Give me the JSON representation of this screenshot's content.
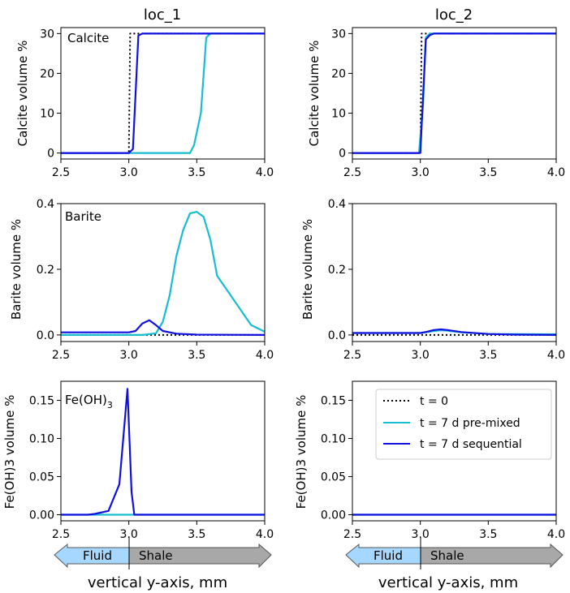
{
  "colors": {
    "t0": "#000000",
    "premixed": "#17BECF",
    "sequential": "#1010E0",
    "fluid_arrow": "#A6D8FF",
    "shale_arrow": "#A8A8A8"
  },
  "column_titles": [
    "loc_1",
    "loc_2"
  ],
  "row_ylabels": [
    "Calcite volume %",
    "Barite volume %",
    "Fe(OH)3 volume %"
  ],
  "panel_labels": [
    "Calcite",
    "Barite",
    "Fe(OH)"
  ],
  "panel_label_sub": "3",
  "xlabel": "vertical y-axis, mm",
  "arrow_labels": {
    "fluid": "Fluid",
    "shale": "Shale"
  },
  "legend": {
    "entries": [
      {
        "label": "t = 0",
        "series": "t0"
      },
      {
        "label": "t = 7 d pre-mixed",
        "series": "premixed"
      },
      {
        "label": "t = 7 d sequential",
        "series": "sequential"
      }
    ],
    "location": "top-right of bottom-right panel"
  },
  "chart_data": [
    {
      "type": "line",
      "id": "calcite_loc1",
      "title": "loc_1",
      "annotation": "Calcite",
      "xlabel": "",
      "ylabel": "Calcite volume %",
      "xlim": [
        2.5,
        4.0
      ],
      "ylim": [
        -1.5,
        31.5
      ],
      "xticks": [
        2.5,
        3.0,
        3.5,
        4.0
      ],
      "xtick_labels": [
        "2.5",
        "3.0",
        "3.5",
        "4.0"
      ],
      "yticks": [
        0,
        10,
        20,
        30
      ],
      "ytick_labels": [
        "0",
        "10",
        "20",
        "30"
      ],
      "series": [
        {
          "name": "t = 0",
          "style": "dotted",
          "x": [
            2.5,
            3.0,
            3.01,
            4.0
          ],
          "y": [
            0,
            0,
            30,
            30
          ]
        },
        {
          "name": "t = 7 d pre-mixed",
          "x": [
            2.5,
            3.45,
            3.48,
            3.53,
            3.57,
            3.6,
            4.0
          ],
          "y": [
            0,
            0,
            2,
            10,
            29,
            30,
            30
          ]
        },
        {
          "name": "t = 7 d sequential",
          "x": [
            2.5,
            3.0,
            3.03,
            3.05,
            3.07,
            3.1,
            4.0
          ],
          "y": [
            0,
            0,
            1,
            15,
            29.5,
            30,
            30
          ]
        }
      ]
    },
    {
      "type": "line",
      "id": "calcite_loc2",
      "title": "loc_2",
      "xlabel": "",
      "ylabel": "Calcite volume %",
      "xlim": [
        2.5,
        4.0
      ],
      "ylim": [
        -1.5,
        31.5
      ],
      "xticks": [
        2.5,
        3.0,
        3.5,
        4.0
      ],
      "xtick_labels": [
        "2.5",
        "3.0",
        "3.5",
        "4.0"
      ],
      "yticks": [
        0,
        10,
        20,
        30
      ],
      "ytick_labels": [
        "0",
        "10",
        "20",
        "30"
      ],
      "series": [
        {
          "name": "t = 0",
          "style": "dotted",
          "x": [
            2.5,
            3.0,
            3.01,
            4.0
          ],
          "y": [
            0,
            0,
            30,
            30
          ]
        },
        {
          "name": "t = 7 d pre-mixed",
          "x": [
            2.5,
            2.99,
            3.02,
            3.04,
            3.07,
            4.0
          ],
          "y": [
            0,
            0,
            12,
            29,
            30,
            30
          ]
        },
        {
          "name": "t = 7 d sequential",
          "x": [
            2.5,
            3.0,
            3.02,
            3.04,
            3.07,
            3.1,
            4.0
          ],
          "y": [
            0,
            0,
            14,
            28.5,
            29.6,
            30,
            30
          ]
        }
      ]
    },
    {
      "type": "line",
      "id": "barite_loc1",
      "annotation": "Barite",
      "xlabel": "",
      "ylabel": "Barite volume %",
      "xlim": [
        2.5,
        4.0
      ],
      "ylim": [
        -0.02,
        0.4
      ],
      "xticks": [
        2.5,
        3.0,
        3.5,
        4.0
      ],
      "xtick_labels": [
        "2.5",
        "3.0",
        "3.5",
        "4.0"
      ],
      "yticks": [
        0.0,
        0.2,
        0.4
      ],
      "ytick_labels": [
        "0.0",
        "0.2",
        "0.4"
      ],
      "series": [
        {
          "name": "t = 0",
          "style": "dotted",
          "x": [
            2.5,
            4.0
          ],
          "y": [
            0,
            0
          ]
        },
        {
          "name": "t = 7 d pre-mixed",
          "x": [
            2.5,
            3.1,
            3.2,
            3.25,
            3.3,
            3.35,
            3.4,
            3.45,
            3.5,
            3.55,
            3.6,
            3.65,
            3.75,
            3.9,
            4.0
          ],
          "y": [
            0,
            0,
            0.005,
            0.04,
            0.12,
            0.24,
            0.32,
            0.37,
            0.375,
            0.36,
            0.29,
            0.18,
            0.12,
            0.03,
            0.01
          ]
        },
        {
          "name": "t = 7 d sequential",
          "x": [
            2.5,
            3.0,
            3.05,
            3.1,
            3.15,
            3.2,
            3.25,
            3.35,
            3.5,
            4.0
          ],
          "y": [
            0.008,
            0.008,
            0.012,
            0.035,
            0.045,
            0.03,
            0.012,
            0.004,
            0.001,
            0.0
          ]
        }
      ]
    },
    {
      "type": "line",
      "id": "barite_loc2",
      "xlabel": "",
      "ylabel": "Barite volume %",
      "xlim": [
        2.5,
        4.0
      ],
      "ylim": [
        -0.02,
        0.4
      ],
      "xticks": [
        2.5,
        3.0,
        3.5,
        4.0
      ],
      "xtick_labels": [
        "2.5",
        "3.0",
        "3.5",
        "4.0"
      ],
      "yticks": [
        0.0,
        0.2,
        0.4
      ],
      "ytick_labels": [
        "0.0",
        "0.2",
        "0.4"
      ],
      "series": [
        {
          "name": "t = 0",
          "style": "dotted",
          "x": [
            2.5,
            4.0
          ],
          "y": [
            0,
            0
          ]
        },
        {
          "name": "t = 7 d pre-mixed",
          "x": [
            2.5,
            3.0,
            3.1,
            3.15,
            3.2,
            3.3,
            3.5,
            4.0
          ],
          "y": [
            0.006,
            0.006,
            0.012,
            0.014,
            0.013,
            0.008,
            0.003,
            0.002
          ]
        },
        {
          "name": "t = 7 d sequential",
          "x": [
            2.5,
            3.0,
            3.05,
            3.1,
            3.15,
            3.2,
            3.3,
            3.5,
            3.7,
            4.0
          ],
          "y": [
            0.006,
            0.006,
            0.01,
            0.015,
            0.017,
            0.015,
            0.009,
            0.003,
            0.001,
            0.0
          ]
        }
      ]
    },
    {
      "type": "line",
      "id": "feoh3_loc1",
      "annotation": "Fe(OH)3",
      "xlabel": "",
      "ylabel": "Fe(OH)3 volume %",
      "xlim": [
        2.5,
        4.0
      ],
      "ylim": [
        -0.008,
        0.175
      ],
      "xticks": [
        2.5,
        3.0,
        3.5,
        4.0
      ],
      "xtick_labels": [
        "2.5",
        "3.0",
        "3.5",
        "4.0"
      ],
      "yticks": [
        0.0,
        0.05,
        0.1,
        0.15
      ],
      "ytick_labels": [
        "0.00",
        "0.05",
        "0.10",
        "0.15"
      ],
      "series": [
        {
          "name": "t = 0",
          "style": "dotted",
          "x": [
            2.5,
            4.0
          ],
          "y": [
            0,
            0
          ]
        },
        {
          "name": "t = 7 d pre-mixed",
          "x": [
            2.5,
            4.0
          ],
          "y": [
            0,
            0
          ]
        },
        {
          "name": "t = 7 d sequential",
          "x": [
            2.5,
            2.7,
            2.75,
            2.85,
            2.93,
            2.99,
            3.02,
            3.04,
            4.0
          ],
          "y": [
            0.0,
            0.0,
            0.001,
            0.005,
            0.04,
            0.165,
            0.03,
            0.0,
            0.0
          ]
        }
      ]
    },
    {
      "type": "line",
      "id": "feoh3_loc2",
      "xlabel": "",
      "ylabel": "Fe(OH)3 volume %",
      "xlim": [
        2.5,
        4.0
      ],
      "ylim": [
        -0.008,
        0.175
      ],
      "xticks": [
        2.5,
        3.0,
        3.5,
        4.0
      ],
      "xtick_labels": [
        "2.5",
        "3.0",
        "3.5",
        "4.0"
      ],
      "yticks": [
        0.0,
        0.05,
        0.1,
        0.15
      ],
      "ytick_labels": [
        "0.00",
        "0.05",
        "0.10",
        "0.15"
      ],
      "series": [
        {
          "name": "t = 0",
          "style": "dotted",
          "x": [
            2.5,
            4.0
          ],
          "y": [
            0,
            0
          ]
        },
        {
          "name": "t = 7 d pre-mixed",
          "x": [
            2.5,
            4.0
          ],
          "y": [
            0,
            0
          ]
        },
        {
          "name": "t = 7 d sequential",
          "x": [
            2.5,
            4.0
          ],
          "y": [
            0,
            0
          ]
        }
      ]
    }
  ]
}
